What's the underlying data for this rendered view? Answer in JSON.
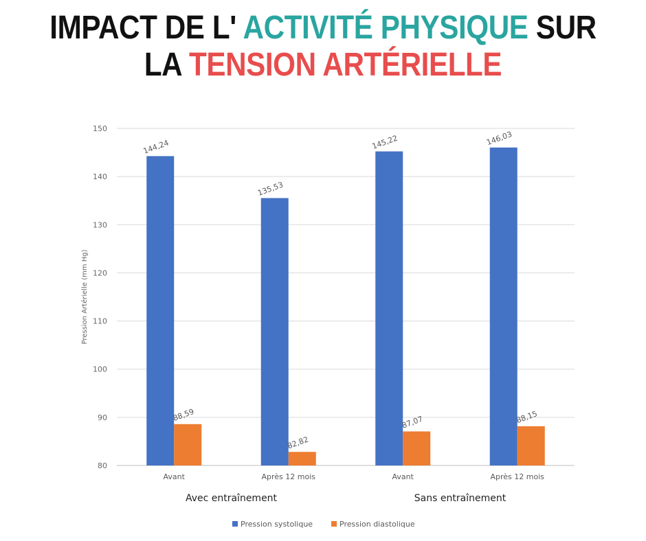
{
  "title": {
    "line1_part1": "IMPACT DE L'",
    "line1_part2": "ACTIVITÉ PHYSIQUE",
    "line1_part3": "SUR",
    "line2_part1": "LA",
    "line2_part2": "TENSION ARTÉRIELLE"
  },
  "colors": {
    "systolic": "#4472c4",
    "diastolic": "#ed7d31",
    "grid": "#d9d9d9",
    "axis": "#bfbfbf",
    "title_green": "#2aa5a0",
    "title_red": "#e84d4d"
  },
  "chart_data": {
    "type": "bar",
    "title": "IMPACT DE L' ACTIVITÉ PHYSIQUE SUR LA TENSION ARTÉRIELLE",
    "xlabel": "",
    "ylabel": "Pression Artérielle (mm Hg)",
    "ylim": [
      80,
      150
    ],
    "yticks": [
      80,
      90,
      100,
      110,
      120,
      130,
      140,
      150
    ],
    "grid": true,
    "legend_position": "bottom",
    "categories": [
      "Avant",
      "Après 12 mois",
      "Avant",
      "Après 12 mois"
    ],
    "groups": [
      {
        "label": "Avec entraînement",
        "categories": [
          0,
          1
        ]
      },
      {
        "label": "Sans entraînement",
        "categories": [
          2,
          3
        ]
      }
    ],
    "series": [
      {
        "name": "Pression systolique",
        "values": [
          144.24,
          135.53,
          145.22,
          146.03
        ],
        "labels": [
          "144,24",
          "135,53",
          "145,22",
          "146,03"
        ]
      },
      {
        "name": "Pression diastolique",
        "values": [
          88.59,
          82.82,
          87.07,
          88.15
        ],
        "labels": [
          "88,59",
          "82,82",
          "87,07",
          "88,15"
        ]
      }
    ]
  }
}
